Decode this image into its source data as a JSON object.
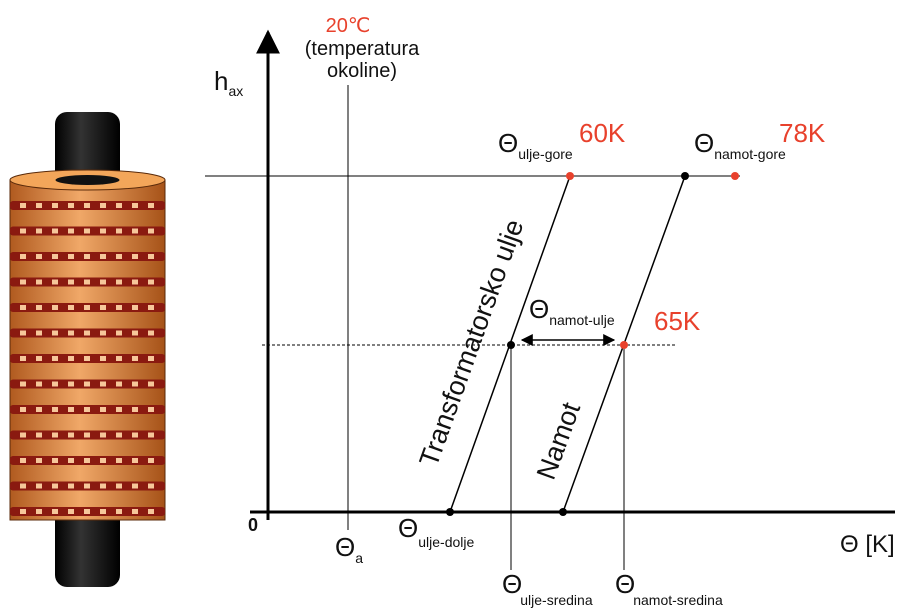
{
  "ambient": {
    "temperature": "20℃",
    "note_lines": [
      "(temperatura",
      "okoline)"
    ]
  },
  "y_axis": {
    "symbol": "h",
    "subscript": "ax"
  },
  "x_axis": {
    "label": "Θ [K]",
    "origin": "0"
  },
  "labels": [
    {
      "symbol": "Θ",
      "subscript": "ulje-gore"
    },
    {
      "symbol": "Θ",
      "subscript": "namot-gore"
    },
    {
      "symbol": "Θ",
      "subscript": "namot-ulje"
    },
    {
      "symbol": "Θ",
      "subscript": "a"
    },
    {
      "symbol": "Θ",
      "subscript": "ulje-dolje"
    },
    {
      "symbol": "Θ",
      "subscript": "ulje-sredina"
    },
    {
      "symbol": "Θ",
      "subscript": "namot-sredina"
    }
  ],
  "values": [
    "60K",
    "78K",
    "65K"
  ],
  "curves": [
    "Transformatorsko ulje",
    "Namot"
  ]
}
